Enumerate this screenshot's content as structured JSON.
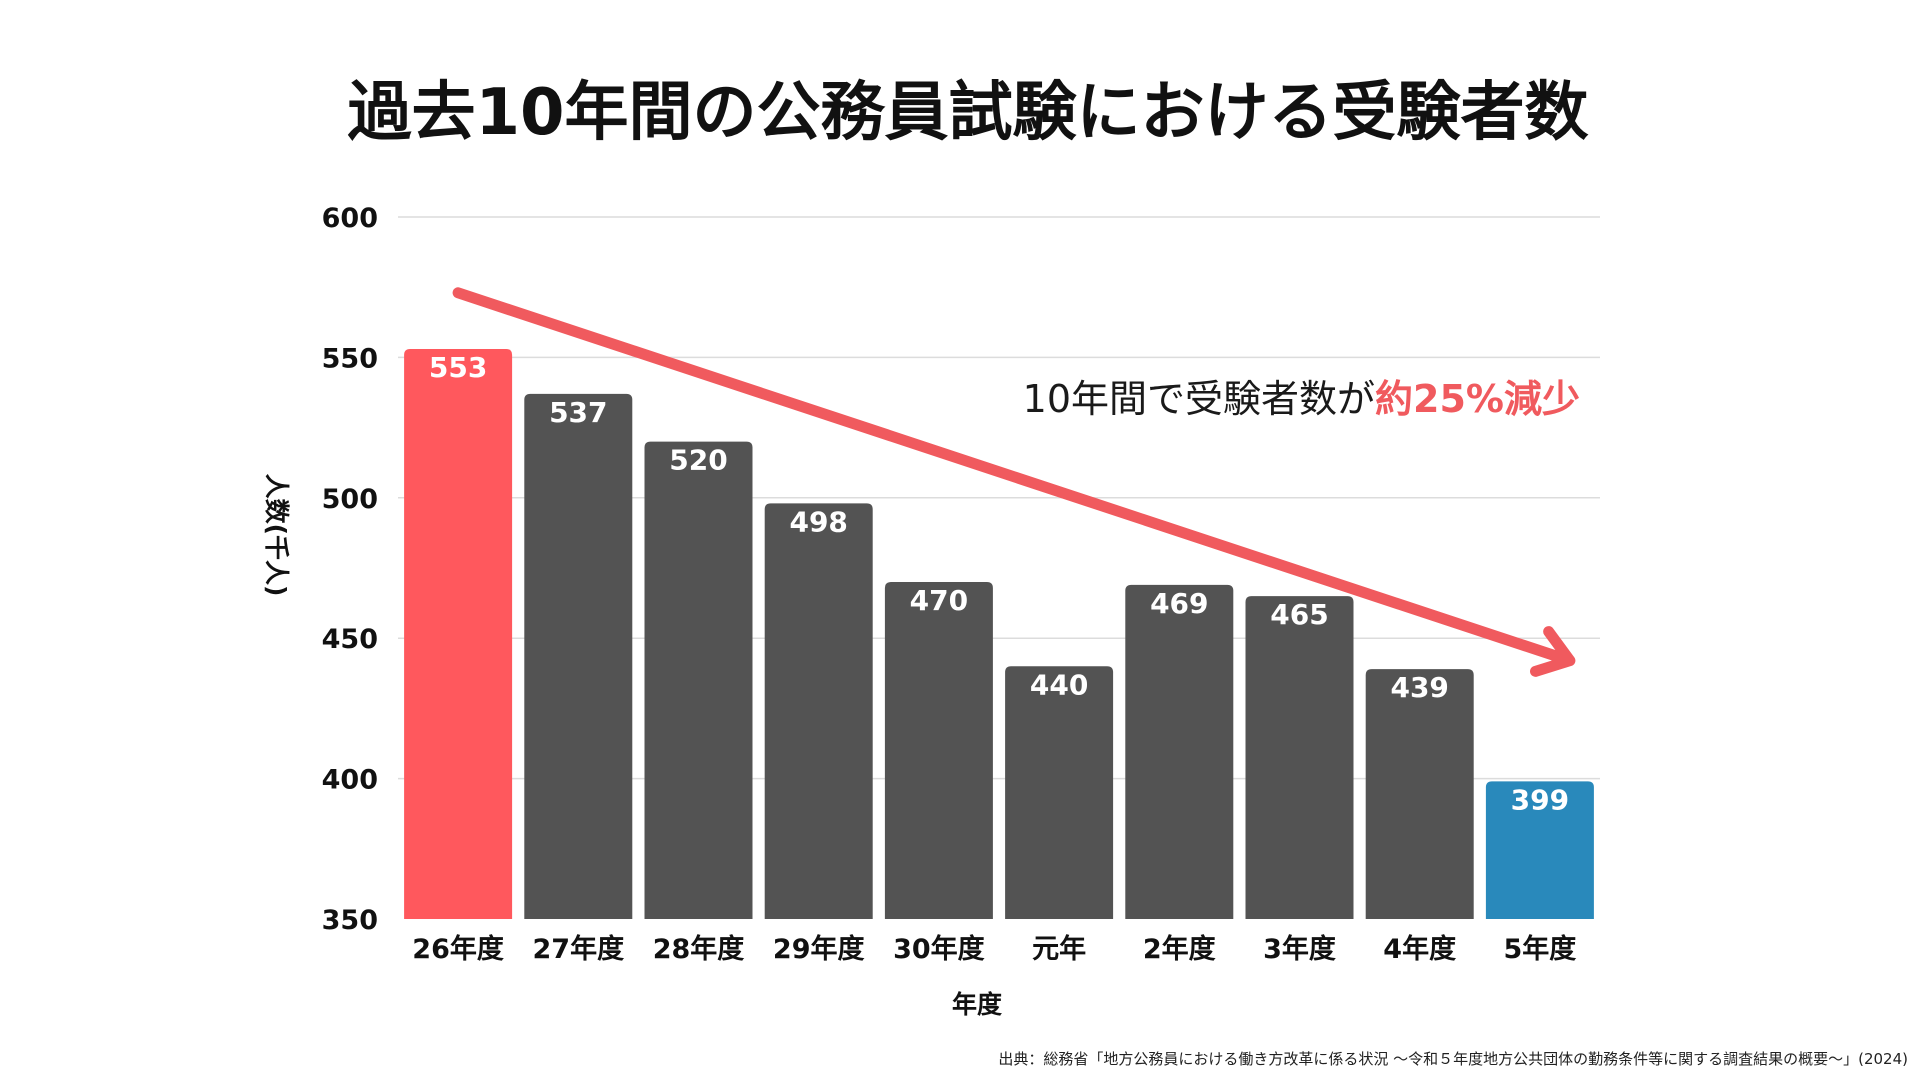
{
  "colors": {
    "highlight_first": "#ff585d",
    "default_bar": "#535353",
    "highlight_last": "#2989bb",
    "trend_arrow": "#f05a5e"
  },
  "chart_data": {
    "type": "bar",
    "title": "過去10年間の公務員試験における受験者数",
    "xlabel": "年度",
    "ylabel": "人数(千人)",
    "categories": [
      "26年度",
      "27年度",
      "28年度",
      "29年度",
      "30年度",
      "元年",
      "2年度",
      "3年度",
      "4年度",
      "5年度"
    ],
    "values": [
      553,
      537,
      520,
      498,
      470,
      440,
      469,
      465,
      439,
      399
    ],
    "ylim": [
      350,
      600
    ],
    "yticks": [
      350,
      400,
      450,
      500,
      550,
      600
    ],
    "grid": true,
    "annotation": {
      "text_prefix": "10年間で受験者数が",
      "text_emphasis": "約25%減少"
    },
    "trend_arrow": {
      "from_value": 573,
      "to_value": 442,
      "direction": "down"
    },
    "source": "出典：総務省「地方公務員における働き方改革に係る状況 ～令和５年度地方公共団体の勤務条件等に関する調査結果の概要～」(2024)"
  }
}
